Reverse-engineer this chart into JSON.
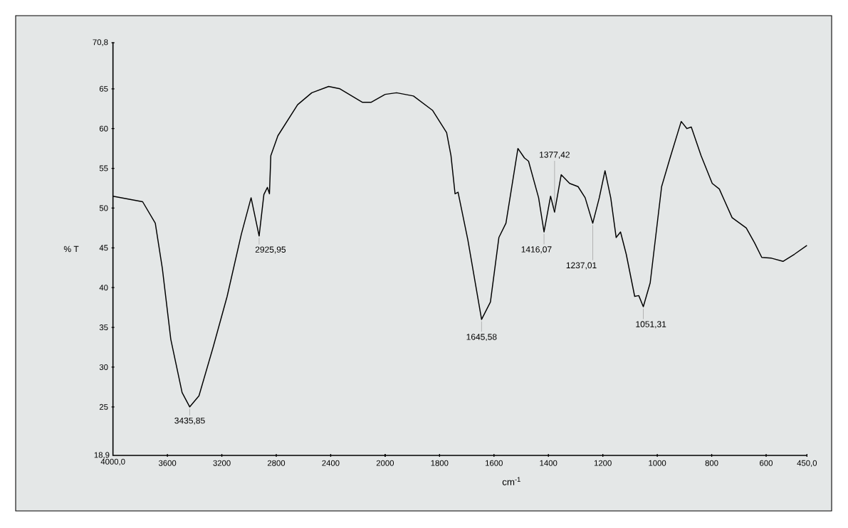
{
  "chart_data": [
    {
      "type": "line",
      "ylabel": "% T",
      "xlim": [
        4000,
        2000
      ],
      "ylim": [
        18.9,
        70.8
      ],
      "xticks": [
        {
          "value": 4000,
          "label": "4000,0"
        },
        3600,
        3200,
        2800,
        2400,
        2000
      ],
      "yticks": [
        {
          "value": 18.9,
          "label": "18,9"
        },
        25,
        30,
        35,
        40,
        45,
        50,
        55,
        60,
        65,
        {
          "value": 70.8,
          "label": "70,8"
        }
      ],
      "grid": false,
      "marker": "none",
      "series": [
        {
          "color": "#000000",
          "x": [
            4000,
            3782,
            3689,
            3637,
            3575,
            3492,
            3435.85,
            3368,
            3264,
            3161,
            3057,
            2985,
            2925.95,
            2891,
            2865,
            2850,
            2840,
            2788,
            2643,
            2539,
            2415,
            2332,
            2166,
            2104,
            2000
          ],
          "values": [
            51.5,
            50.8,
            48.1,
            42.4,
            33.5,
            26.8,
            25.0,
            26.4,
            32.5,
            38.9,
            46.7,
            51.3,
            46.5,
            51.7,
            52.6,
            51.8,
            56.6,
            59.1,
            63.0,
            64.5,
            65.3,
            65.0,
            63.3,
            63.3,
            64.3
          ]
        }
      ],
      "annotations": [
        {
          "text": "3435,85",
          "x": 3435.85,
          "y": 25.0
        },
        {
          "text": "2925,95",
          "x": 2925.95,
          "y": 46.5
        }
      ]
    },
    {
      "type": "line",
      "xlabel": "cm$^{-1}$",
      "xlim": [
        2000,
        450
      ],
      "ylim": [
        18.9,
        70.8
      ],
      "xticks": [
        {
          "value": 2000,
          "label": null
        },
        1800,
        1600,
        1400,
        1200,
        1000,
        800,
        600,
        {
          "value": 450,
          "label": "450,0"
        }
      ],
      "tick_labels": "x",
      "grid": false,
      "marker": "none",
      "series": [
        {
          "color": "#000000",
          "x": [
            2000,
            1958,
            1896,
            1826,
            1774,
            1758,
            1743,
            1732,
            1696,
            1645.58,
            1613,
            1582,
            1556,
            1512,
            1488,
            1473,
            1436,
            1416.07,
            1392,
            1377.42,
            1353,
            1322,
            1291,
            1265,
            1237.01,
            1213,
            1192,
            1171,
            1151,
            1135,
            1114,
            1083,
            1068,
            1051.31,
            1026,
            984,
            953,
            912,
            891,
            875,
            839,
            798,
            772,
            725,
            673,
            642,
            616,
            580,
            538,
            496,
            450
          ],
          "values": [
            64.3,
            64.5,
            64.1,
            62.3,
            59.5,
            56.6,
            51.8,
            52.0,
            46.0,
            36.0,
            38.2,
            46.3,
            48.1,
            57.5,
            56.3,
            55.9,
            51.3,
            47.0,
            51.5,
            49.5,
            54.2,
            53.1,
            52.7,
            51.3,
            48.1,
            51.3,
            54.7,
            51.3,
            46.3,
            47.0,
            44.2,
            38.9,
            39.0,
            37.6,
            40.6,
            52.7,
            56.3,
            60.9,
            60.0,
            60.2,
            56.6,
            53.1,
            52.4,
            48.8,
            47.5,
            45.6,
            43.8,
            43.7,
            43.3,
            44.2,
            45.3
          ]
        }
      ],
      "annotations": [
        {
          "text": "1645,58",
          "x": 1645.58,
          "y": 36.0
        },
        {
          "text": "1416,07",
          "x": 1416.07,
          "y": 47.0
        },
        {
          "text": "1377,42",
          "x": 1377.42,
          "y": 49.5
        },
        {
          "text": "1237,01",
          "x": 1237.01,
          "y": 48.1
        },
        {
          "text": "1051,31",
          "x": 1051.31,
          "y": 37.6
        }
      ]
    }
  ]
}
